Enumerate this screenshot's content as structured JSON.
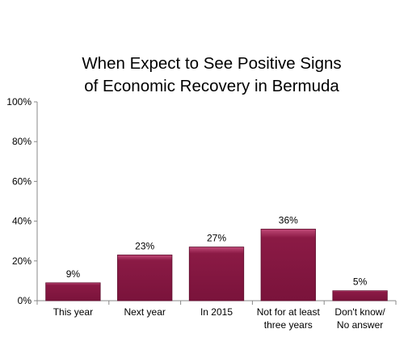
{
  "chart_data": {
    "type": "bar",
    "title_lines": [
      "When Expect to See Positive Signs",
      "of Economic Recovery in Bermuda"
    ],
    "categories": [
      [
        "This year"
      ],
      [
        "Next year"
      ],
      [
        "In 2015"
      ],
      [
        "Not for at least",
        "three years"
      ],
      [
        "Don't know/",
        "No answer"
      ]
    ],
    "values": [
      9,
      23,
      27,
      36,
      5
    ],
    "value_labels": [
      "9%",
      "23%",
      "27%",
      "36%",
      "5%"
    ],
    "ylim": [
      0,
      100
    ],
    "y_ticks": [
      0,
      20,
      40,
      60,
      80,
      100
    ],
    "y_tick_labels": [
      "0%",
      "20%",
      "40%",
      "60%",
      "80%",
      "100%"
    ],
    "grid": false,
    "legend": "none",
    "bar_color": "#8b1a45",
    "bar_highlight": "#c04a78"
  }
}
